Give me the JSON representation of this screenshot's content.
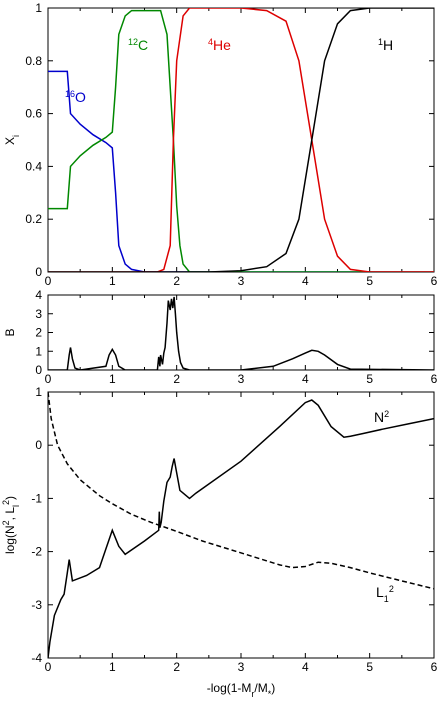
{
  "chart_data": [
    {
      "type": "line",
      "ylabel": "Xi",
      "xlim": [
        0,
        6
      ],
      "ylim": [
        0,
        1.0
      ],
      "yticks": [
        "0",
        "0.2",
        "0.4",
        "0.6",
        "0.8",
        "1"
      ],
      "xticks": [
        "0",
        "1",
        "2",
        "3",
        "4",
        "5",
        "6"
      ],
      "series": [
        {
          "name": "16O",
          "mass": "16",
          "element": "O",
          "color": "#0000cc",
          "x": [
            0,
            0.3,
            0.35,
            0.5,
            0.7,
            0.9,
            1.0,
            1.05,
            1.1,
            1.2,
            1.3,
            1.5,
            6
          ],
          "y": [
            0.76,
            0.76,
            0.6,
            0.56,
            0.52,
            0.49,
            0.47,
            0.3,
            0.1,
            0.03,
            0.01,
            0,
            0
          ]
        },
        {
          "name": "12C",
          "mass": "12",
          "element": "C",
          "color": "#008800",
          "x": [
            0,
            0.3,
            0.35,
            0.5,
            0.7,
            0.9,
            1.0,
            1.05,
            1.1,
            1.2,
            1.3,
            1.75,
            1.85,
            1.95,
            2.0,
            2.05,
            2.1,
            2.2,
            6
          ],
          "y": [
            0.24,
            0.24,
            0.4,
            0.44,
            0.48,
            0.51,
            0.53,
            0.7,
            0.9,
            0.97,
            0.99,
            0.99,
            0.9,
            0.5,
            0.25,
            0.1,
            0.03,
            0,
            0
          ]
        },
        {
          "name": "4He",
          "mass": "4",
          "element": "He",
          "color": "#dd0000",
          "x": [
            0,
            1.7,
            1.8,
            1.9,
            1.95,
            2.0,
            2.1,
            2.2,
            3.0,
            3.4,
            3.7,
            3.9,
            4.1,
            4.3,
            4.5,
            4.7,
            5.0,
            6
          ],
          "y": [
            0,
            0,
            0.01,
            0.1,
            0.5,
            0.8,
            0.97,
            1.0,
            1.0,
            0.99,
            0.95,
            0.8,
            0.5,
            0.2,
            0.06,
            0.01,
            0,
            0
          ]
        },
        {
          "name": "1H",
          "mass": "1",
          "element": "H",
          "color": "#000000",
          "x": [
            0,
            2.5,
            3.0,
            3.4,
            3.7,
            3.9,
            4.1,
            4.3,
            4.5,
            4.7,
            5.0,
            6
          ],
          "y": [
            0,
            0,
            0.005,
            0.02,
            0.07,
            0.2,
            0.5,
            0.8,
            0.94,
            0.99,
            1.0,
            1.0
          ]
        }
      ]
    },
    {
      "type": "line",
      "ylabel": "B",
      "xlim": [
        0,
        6
      ],
      "ylim": [
        0,
        4
      ],
      "yticks": [
        "0",
        "1",
        "2",
        "3",
        "4"
      ],
      "xticks": [
        "0",
        "1",
        "2",
        "3",
        "4",
        "5",
        "6"
      ],
      "series": [
        {
          "color": "#000000",
          "x": [
            0,
            0.3,
            0.33,
            0.35,
            0.38,
            0.42,
            0.5,
            0.9,
            0.95,
            1.0,
            1.05,
            1.1,
            1.2,
            1.7,
            1.72,
            1.74,
            1.75,
            1.78,
            1.8,
            1.82,
            1.85,
            1.87,
            1.9,
            1.92,
            1.94,
            1.96,
            1.98,
            2.0,
            2.03,
            2.06,
            2.1,
            2.2,
            3.0,
            3.5,
            3.8,
            4.0,
            4.1,
            4.2,
            4.3,
            4.5,
            4.7,
            6
          ],
          "y": [
            0,
            0,
            0.8,
            1.2,
            0.6,
            0.1,
            0,
            0.2,
            0.8,
            1.1,
            0.8,
            0.2,
            0,
            0,
            0.7,
            0.2,
            0.8,
            0.3,
            0.9,
            1.2,
            2.5,
            3.7,
            3.2,
            3.8,
            3.3,
            3.9,
            3.0,
            2.0,
            1.0,
            0.4,
            0.1,
            0,
            0,
            0.2,
            0.6,
            0.9,
            1.05,
            1.0,
            0.8,
            0.3,
            0.05,
            0
          ]
        }
      ]
    },
    {
      "type": "line",
      "ylabel": "log(N², L₁²)",
      "xlabel": "-log(1-Mr/M*)",
      "xlim": [
        0,
        6
      ],
      "ylim": [
        -4,
        1
      ],
      "yticks": [
        "-4",
        "-3",
        "-2",
        "-1",
        "0",
        "1"
      ],
      "xticks": [
        "0",
        "1",
        "2",
        "3",
        "4",
        "5",
        "6"
      ],
      "series": [
        {
          "name": "N2",
          "base": "N",
          "sup": "2",
          "style": "solid",
          "color": "#000000",
          "x": [
            0,
            0.03,
            0.1,
            0.2,
            0.25,
            0.3,
            0.33,
            0.36,
            0.38,
            0.6,
            0.8,
            0.9,
            1.0,
            1.1,
            1.2,
            1.5,
            1.72,
            1.73,
            1.74,
            1.76,
            1.8,
            1.85,
            1.9,
            1.93,
            1.96,
            1.99,
            2.05,
            2.1,
            2.2,
            2.3,
            3.0,
            3.6,
            4.0,
            4.1,
            4.2,
            4.4,
            4.6,
            4.7,
            4.9,
            5.2,
            5.6,
            6
          ],
          "y": [
            -4,
            -3.7,
            -3.2,
            -2.9,
            -2.8,
            -2.4,
            -2.15,
            -2.4,
            -2.55,
            -2.45,
            -2.3,
            -1.95,
            -1.6,
            -1.9,
            -2.05,
            -1.8,
            -1.6,
            -1.25,
            -1.55,
            -1.45,
            -1.05,
            -0.7,
            -0.6,
            -0.4,
            -0.25,
            -0.45,
            -0.85,
            -0.9,
            -1.0,
            -0.9,
            -0.3,
            0.35,
            0.8,
            0.85,
            0.75,
            0.35,
            0.15,
            0.17,
            0.22,
            0.3,
            0.4,
            0.5
          ]
        },
        {
          "name": "L12",
          "base": "L",
          "sub": "1",
          "sup": "2",
          "style": "dashed",
          "color": "#000000",
          "x": [
            0,
            0.05,
            0.15,
            0.3,
            0.5,
            0.8,
            1.0,
            1.3,
            1.6,
            2.0,
            2.4,
            2.8,
            3.2,
            3.6,
            3.8,
            4.0,
            4.2,
            4.4,
            4.7,
            5.0,
            5.5,
            6
          ],
          "y": [
            1.0,
            0.5,
            0.0,
            -0.35,
            -0.65,
            -0.95,
            -1.1,
            -1.3,
            -1.45,
            -1.62,
            -1.8,
            -1.95,
            -2.1,
            -2.25,
            -2.3,
            -2.28,
            -2.2,
            -2.22,
            -2.3,
            -2.4,
            -2.55,
            -2.7
          ]
        }
      ]
    }
  ]
}
